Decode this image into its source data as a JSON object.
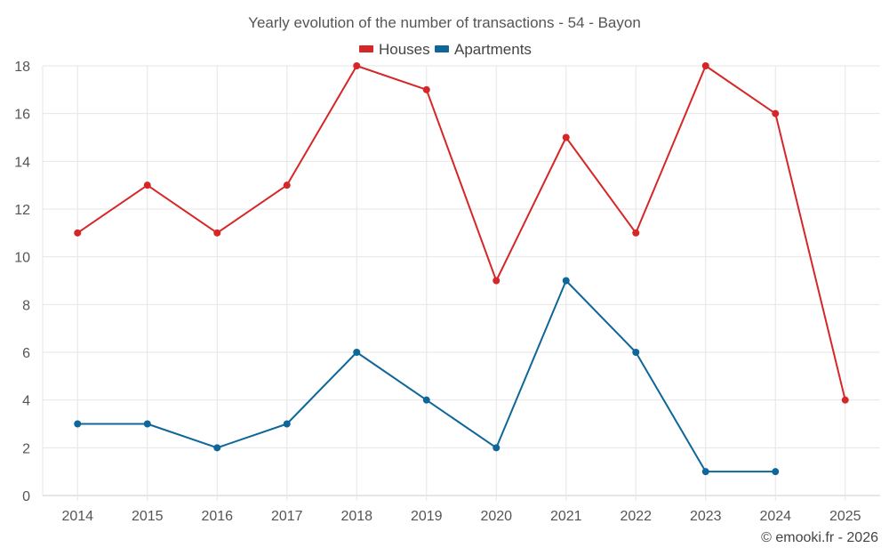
{
  "chart_data": {
    "type": "line",
    "title": "Yearly evolution of the number of transactions - 54 - Bayon",
    "categories": [
      "2014",
      "2015",
      "2016",
      "2017",
      "2018",
      "2019",
      "2020",
      "2021",
      "2022",
      "2023",
      "2024",
      "2025"
    ],
    "series": [
      {
        "name": "Houses",
        "color": "#d62728",
        "values": [
          11,
          13,
          11,
          13,
          18,
          17,
          9,
          15,
          11,
          18,
          16,
          4
        ]
      },
      {
        "name": "Apartments",
        "color": "#0e6699",
        "values": [
          3,
          3,
          2,
          3,
          6,
          4,
          2,
          9,
          6,
          1,
          1,
          null
        ]
      }
    ],
    "ylim": [
      0,
      18
    ],
    "yticks": [
      0,
      2,
      4,
      6,
      8,
      10,
      12,
      14,
      16,
      18
    ],
    "xlabel": "",
    "ylabel": "",
    "grid": true,
    "legend": "top-center"
  },
  "credit": "© emooki.fr - 2026"
}
